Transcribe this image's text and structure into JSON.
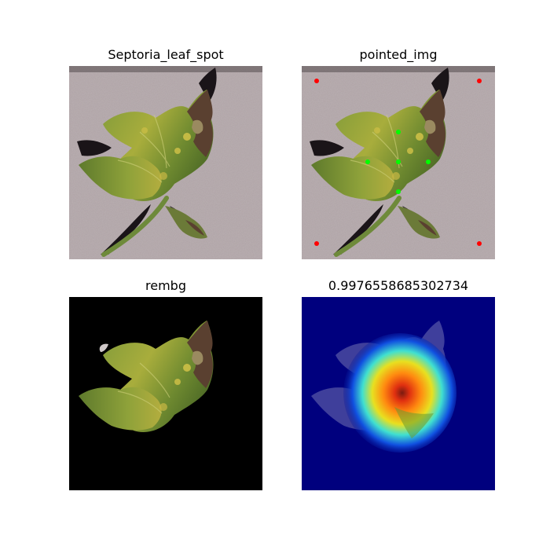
{
  "figure": {
    "panels": [
      {
        "title": "Septoria_leaf_spot",
        "kind": "photo-original"
      },
      {
        "title": "pointed_img",
        "kind": "photo-with-points"
      },
      {
        "title": "rembg",
        "kind": "background-removed"
      },
      {
        "title": "0.9976558685302734",
        "kind": "gradcam-heatmap"
      }
    ]
  },
  "colors": {
    "background_surface": "#a89c9f",
    "removed_background": "#000000",
    "heatmap_base": "#00007e",
    "leaf_dark": "#4b6b26",
    "leaf_yellow": "#b9b03a",
    "necrotic": "#5a4030",
    "stem": "#6e8a3a",
    "shadow": "#1a1418",
    "corner_point": "#ff0000",
    "leaf_point": "#00ff00"
  },
  "points": {
    "corner_color": "red",
    "leaf_color": "green"
  }
}
